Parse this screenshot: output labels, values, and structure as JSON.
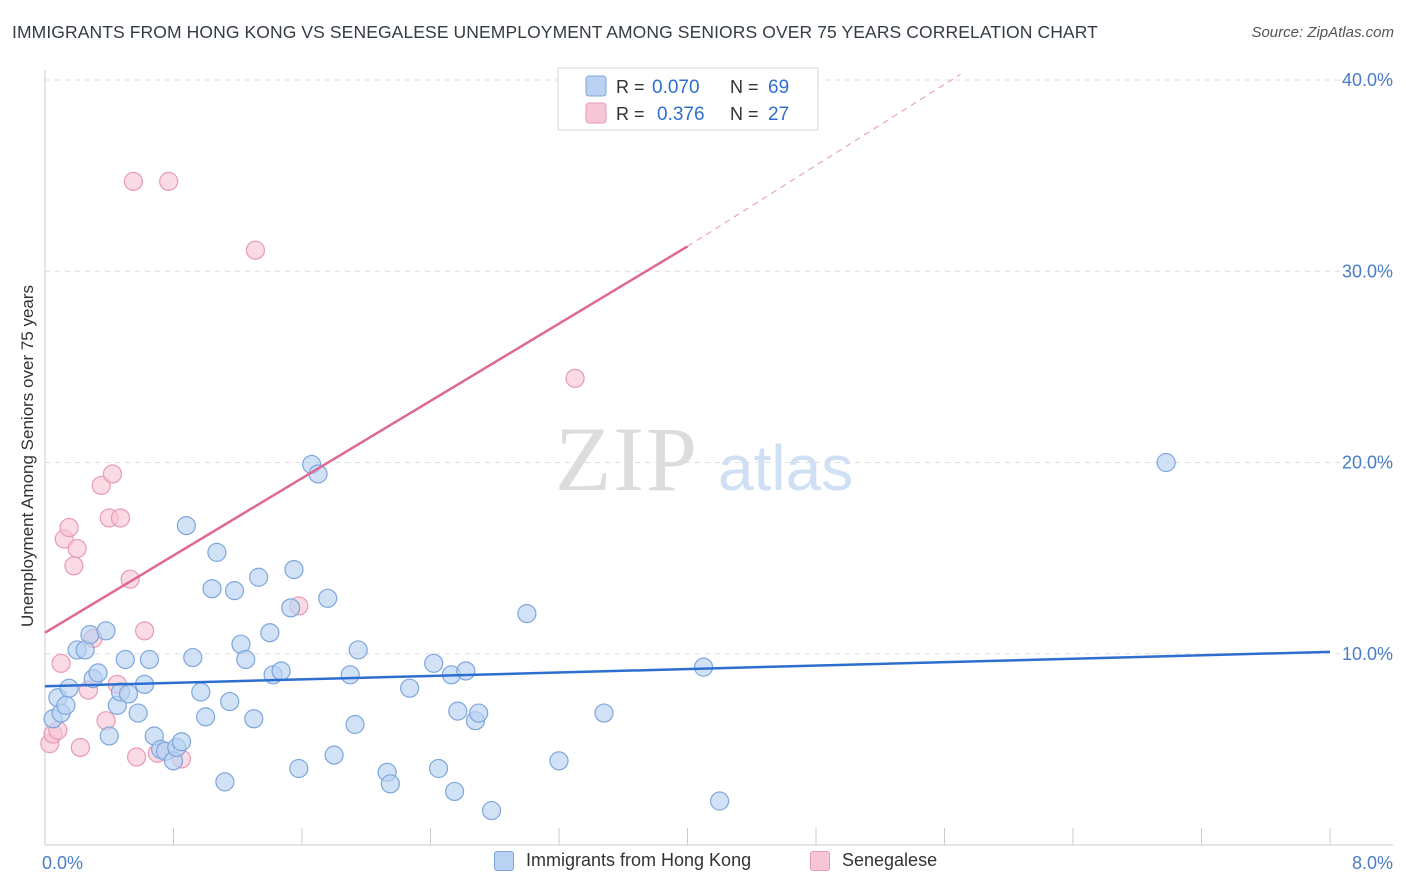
{
  "header": {
    "title": "IMMIGRANTS FROM HONG KONG VS SENEGALESE UNEMPLOYMENT AMONG SENIORS OVER 75 YEARS CORRELATION CHART",
    "source": "Source: ZipAtlas.com"
  },
  "watermark": {
    "zip": "ZIP",
    "atlas": "atlas"
  },
  "legend_top": [
    {
      "r_label": "R =",
      "r_value": "0.070",
      "n_label": "N =",
      "n_value": "69"
    },
    {
      "r_label": "R =",
      "r_value": "0.376",
      "n_label": "N =",
      "n_value": "27"
    }
  ],
  "legend_bottom": [
    "Immigrants from Hong Kong",
    "Senegalese"
  ],
  "colors": {
    "blue_fill": "#b9d2f2",
    "blue_stroke": "#7ea6dc",
    "blue_line": "#2d6fd0",
    "pink_fill": "#f7c6d4",
    "pink_stroke": "#e99ab3",
    "pink_line": "#e06790",
    "tick_label": "#4a7dc9",
    "grid": "#dddddd"
  },
  "chart_data": {
    "type": "scatter",
    "title": "IMMIGRANTS FROM HONG KONG VS SENEGALESE UNEMPLOYMENT AMONG SENIORS OVER 75 YEARS CORRELATION CHART",
    "xlabel": "",
    "ylabel": "Unemployment Among Seniors over 75 years",
    "xlim": [
      0,
      8
    ],
    "ylim": [
      0,
      40
    ],
    "x_tick_labels": [
      "0.0%",
      "8.0%"
    ],
    "y_ticks": [
      10,
      20,
      30,
      40
    ],
    "y_tick_labels": [
      "10.0%",
      "20.0%",
      "30.0%",
      "40.0%"
    ],
    "grid": true,
    "legend_placement": "top-center",
    "series": [
      {
        "name": "Immigrants from Hong Kong",
        "color": "#b9d2f2",
        "trend": {
          "x": [
            0,
            8
          ],
          "y": [
            8.3,
            10.1
          ]
        },
        "points": [
          [
            0.05,
            6.6
          ],
          [
            0.08,
            7.7
          ],
          [
            0.1,
            6.9
          ],
          [
            0.13,
            7.3
          ],
          [
            0.15,
            8.2
          ],
          [
            0.2,
            10.2
          ],
          [
            0.25,
            10.2
          ],
          [
            0.28,
            11.0
          ],
          [
            0.3,
            8.7
          ],
          [
            0.33,
            9.0
          ],
          [
            0.38,
            11.2
          ],
          [
            0.4,
            5.7
          ],
          [
            0.45,
            7.3
          ],
          [
            0.47,
            8.0
          ],
          [
            0.5,
            9.7
          ],
          [
            0.52,
            7.9
          ],
          [
            0.58,
            6.9
          ],
          [
            0.62,
            8.4
          ],
          [
            0.65,
            9.7
          ],
          [
            0.68,
            5.7
          ],
          [
            0.72,
            5.0
          ],
          [
            0.75,
            4.9
          ],
          [
            0.8,
            4.4
          ],
          [
            0.82,
            5.1
          ],
          [
            0.85,
            5.4
          ],
          [
            0.88,
            16.7
          ],
          [
            0.92,
            9.8
          ],
          [
            0.97,
            8.0
          ],
          [
            1.0,
            6.7
          ],
          [
            1.04,
            13.4
          ],
          [
            1.07,
            15.3
          ],
          [
            1.12,
            3.3
          ],
          [
            1.15,
            7.5
          ],
          [
            1.18,
            13.3
          ],
          [
            1.22,
            10.5
          ],
          [
            1.25,
            9.7
          ],
          [
            1.3,
            6.6
          ],
          [
            1.33,
            14.0
          ],
          [
            1.4,
            11.1
          ],
          [
            1.42,
            8.9
          ],
          [
            1.47,
            9.1
          ],
          [
            1.53,
            12.4
          ],
          [
            1.55,
            14.4
          ],
          [
            1.58,
            4.0
          ],
          [
            1.66,
            19.9
          ],
          [
            1.7,
            19.4
          ],
          [
            1.76,
            12.9
          ],
          [
            1.8,
            4.7
          ],
          [
            1.9,
            8.9
          ],
          [
            1.93,
            6.3
          ],
          [
            1.95,
            10.2
          ],
          [
            2.13,
            3.8
          ],
          [
            2.15,
            3.2
          ],
          [
            2.27,
            8.2
          ],
          [
            2.42,
            9.5
          ],
          [
            2.45,
            4.0
          ],
          [
            2.53,
            8.9
          ],
          [
            2.55,
            2.8
          ],
          [
            2.57,
            7.0
          ],
          [
            2.62,
            9.1
          ],
          [
            2.68,
            6.5
          ],
          [
            2.7,
            6.9
          ],
          [
            2.78,
            1.8
          ],
          [
            3.0,
            12.1
          ],
          [
            3.2,
            4.4
          ],
          [
            3.48,
            6.9
          ],
          [
            4.1,
            9.3
          ],
          [
            4.2,
            2.3
          ],
          [
            6.98,
            20.0
          ]
        ]
      },
      {
        "name": "Senegalese",
        "color": "#f7c6d4",
        "trend": {
          "x": [
            0,
            4.0
          ],
          "y": [
            11.1,
            31.3
          ]
        },
        "trend_extension": {
          "x": [
            4.0,
            5.7
          ],
          "y": [
            31.3,
            40.3
          ]
        },
        "points": [
          [
            0.03,
            5.3
          ],
          [
            0.05,
            5.8
          ],
          [
            0.08,
            6.0
          ],
          [
            0.1,
            9.5
          ],
          [
            0.12,
            16.0
          ],
          [
            0.15,
            16.6
          ],
          [
            0.18,
            14.6
          ],
          [
            0.2,
            15.5
          ],
          [
            0.22,
            5.1
          ],
          [
            0.27,
            8.1
          ],
          [
            0.3,
            10.8
          ],
          [
            0.35,
            18.8
          ],
          [
            0.38,
            6.5
          ],
          [
            0.4,
            17.1
          ],
          [
            0.42,
            19.4
          ],
          [
            0.45,
            8.4
          ],
          [
            0.47,
            17.1
          ],
          [
            0.53,
            13.9
          ],
          [
            0.55,
            34.7
          ],
          [
            0.57,
            4.6
          ],
          [
            0.62,
            11.2
          ],
          [
            0.7,
            4.8
          ],
          [
            0.77,
            34.7
          ],
          [
            0.85,
            4.5
          ],
          [
            1.31,
            31.1
          ],
          [
            1.58,
            12.5
          ],
          [
            3.3,
            24.4
          ]
        ]
      }
    ]
  }
}
